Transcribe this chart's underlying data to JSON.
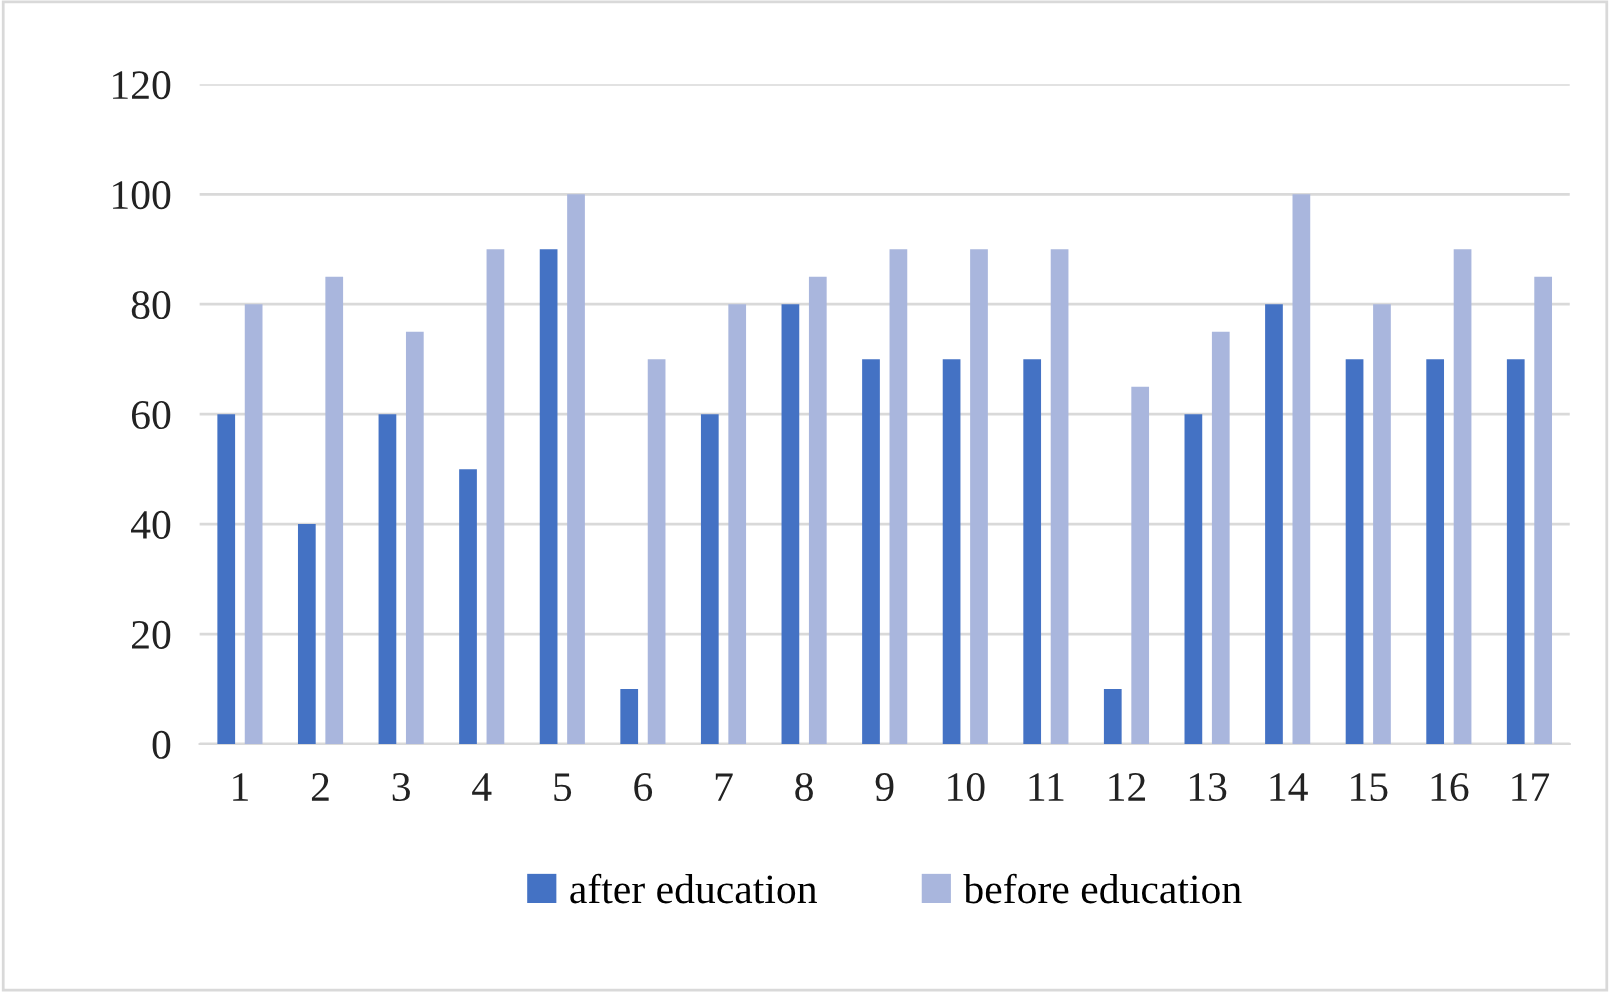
{
  "chart_data": {
    "type": "bar",
    "categories": [
      "1",
      "2",
      "3",
      "4",
      "5",
      "6",
      "7",
      "8",
      "9",
      "10",
      "11",
      "12",
      "13",
      "14",
      "15",
      "16",
      "17"
    ],
    "series": [
      {
        "name": "after education",
        "color": "#4472c4",
        "values": [
          60,
          40,
          60,
          50,
          90,
          10,
          60,
          80,
          70,
          70,
          70,
          10,
          60,
          80,
          70,
          70,
          70
        ]
      },
      {
        "name": "before education",
        "color": "#a9b6dd",
        "values": [
          80,
          85,
          75,
          90,
          100,
          70,
          80,
          85,
          90,
          90,
          90,
          65,
          75,
          100,
          80,
          90,
          85
        ]
      }
    ],
    "ylim": [
      0,
      120
    ],
    "yticks": [
      0,
      20,
      40,
      60,
      80,
      100,
      120
    ],
    "grid": "y",
    "legend": "bottom"
  }
}
